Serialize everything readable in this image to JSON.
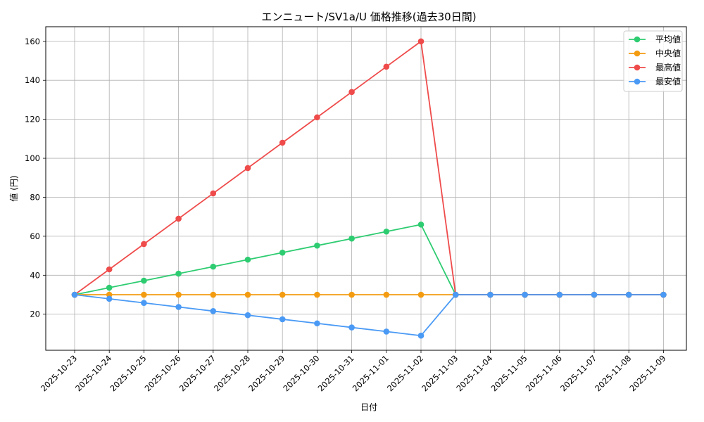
{
  "chart_data": {
    "type": "line",
    "title": "エンニュート/SV1a/U 価格推移(過去30日間)",
    "xlabel": "日付",
    "ylabel": "値 (円)",
    "categories": [
      "2025-10-23",
      "2025-10-24",
      "2025-10-25",
      "2025-10-26",
      "2025-10-27",
      "2025-10-28",
      "2025-10-29",
      "2025-10-30",
      "2025-10-31",
      "2025-11-01",
      "2025-11-02",
      "2025-11-03",
      "2025-11-04",
      "2025-11-05",
      "2025-11-06",
      "2025-11-07",
      "2025-11-08",
      "2025-11-09"
    ],
    "yticks": [
      20,
      40,
      60,
      80,
      100,
      120,
      140,
      160
    ],
    "ylim": [
      1.5,
      167.5
    ],
    "grid": true,
    "legend_position": "top-right",
    "series": [
      {
        "name": "平均値",
        "color": "#2ecc71",
        "values": [
          30,
          33.6,
          37.2,
          40.8,
          44.4,
          48,
          51.6,
          55.2,
          58.8,
          62.4,
          66,
          30,
          30,
          30,
          30,
          30,
          30,
          30
        ]
      },
      {
        "name": "中央値",
        "color": "#f39c12",
        "values": [
          30,
          30,
          30,
          30,
          30,
          30,
          30,
          30,
          30,
          30,
          30,
          30,
          30,
          30,
          30,
          30,
          30,
          30
        ]
      },
      {
        "name": "最高値",
        "color": "#ef4b4b",
        "values": [
          30,
          43,
          56,
          69,
          82,
          95,
          108,
          121,
          134,
          147,
          160,
          30,
          30,
          30,
          30,
          30,
          30,
          30
        ]
      },
      {
        "name": "最安値",
        "color": "#4a9af5",
        "values": [
          30,
          27.9,
          25.8,
          23.7,
          21.6,
          19.5,
          17.4,
          15.3,
          13.2,
          11.1,
          9,
          30,
          30,
          30,
          30,
          30,
          30,
          30
        ]
      }
    ]
  }
}
